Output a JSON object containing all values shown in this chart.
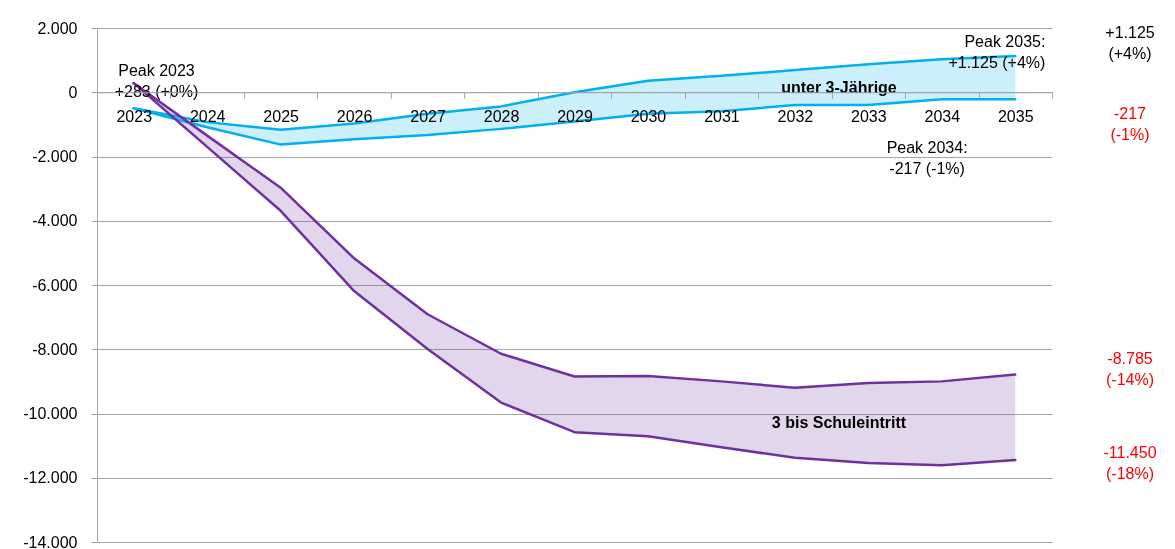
{
  "chart_data": {
    "type": "line",
    "categories": [
      "2023",
      "2024",
      "2025",
      "2026",
      "2027",
      "2028",
      "2029",
      "2030",
      "2031",
      "2032",
      "2033",
      "2034",
      "2035"
    ],
    "series": [
      {
        "name": "unter 3-Jährige",
        "color": "#00b0f0",
        "values": [
          -500,
          -930,
          -1170,
          -970,
          -670,
          -440,
          0,
          360,
          510,
          690,
          870,
          1030,
          1125
        ],
        "lower": [
          -500,
          -1090,
          -1630,
          -1460,
          -1330,
          -1140,
          -910,
          -670,
          -590,
          -400,
          -400,
          -217,
          -217
        ],
        "upper": [
          -500,
          -930,
          -1170,
          -970,
          -670,
          -440,
          0,
          360,
          510,
          690,
          870,
          1030,
          1125
        ]
      },
      {
        "color": "#00b0f0",
        "values": [
          -500,
          -1090,
          -1630,
          -1460,
          -1330,
          -1140,
          -910,
          -670,
          -590,
          -400,
          -400,
          -217,
          -217
        ]
      },
      {
        "name": "3 bis Schuleintritt",
        "color": "#7030a0",
        "values": [
          283,
          -1350,
          -2970,
          -5170,
          -6910,
          -8140,
          -8850,
          -8830,
          -9000,
          -9200,
          -9050,
          -9000,
          -8785
        ],
        "lower": [
          283,
          -1700,
          -3690,
          -6190,
          -7990,
          -9660,
          -10580,
          -10710,
          -11050,
          -11380,
          -11540,
          -11610,
          -11450
        ],
        "upper": [
          283,
          -1350,
          -2970,
          -5170,
          -6910,
          -8140,
          -8850,
          -8830,
          -9000,
          -9200,
          -9050,
          -9000,
          -8785
        ]
      },
      {
        "color": "#7030a0",
        "values": [
          283,
          -1700,
          -3690,
          -6190,
          -7990,
          -9660,
          -10580,
          -10710,
          -11050,
          -11380,
          -11540,
          -11610,
          -11450
        ]
      }
    ],
    "ylim": [
      -14000,
      2000
    ],
    "yticks": [
      {
        "value": 2000,
        "label": "2.000"
      },
      0,
      {
        "value": -2000,
        "label": "-2.000"
      },
      {
        "value": -4000,
        "label": "-4.000"
      },
      {
        "value": -6000,
        "label": "-6.000"
      },
      {
        "value": -8000,
        "label": "-8.000"
      },
      {
        "value": -10000,
        "label": "-10.000"
      },
      {
        "value": -12000,
        "label": "-12.000"
      },
      {
        "value": -14000,
        "label": "-14.000"
      }
    ],
    "grid": "y",
    "annotations": [
      {
        "text": "Peak 2023\n+283 (+0%)",
        "x": "2023",
        "y": 283
      },
      {
        "text": "Peak 2035:\n+1.125 (+4%)",
        "x": "2035",
        "y": 1125
      },
      {
        "text": "Peak 2034:\n-217 (-1%)",
        "x": "2034",
        "y": -217
      },
      "+1.125\n(+4%)",
      "-217\n(-1%)",
      "-8.785\n(-14%)",
      "-11.450\n(-18%)"
    ]
  }
}
